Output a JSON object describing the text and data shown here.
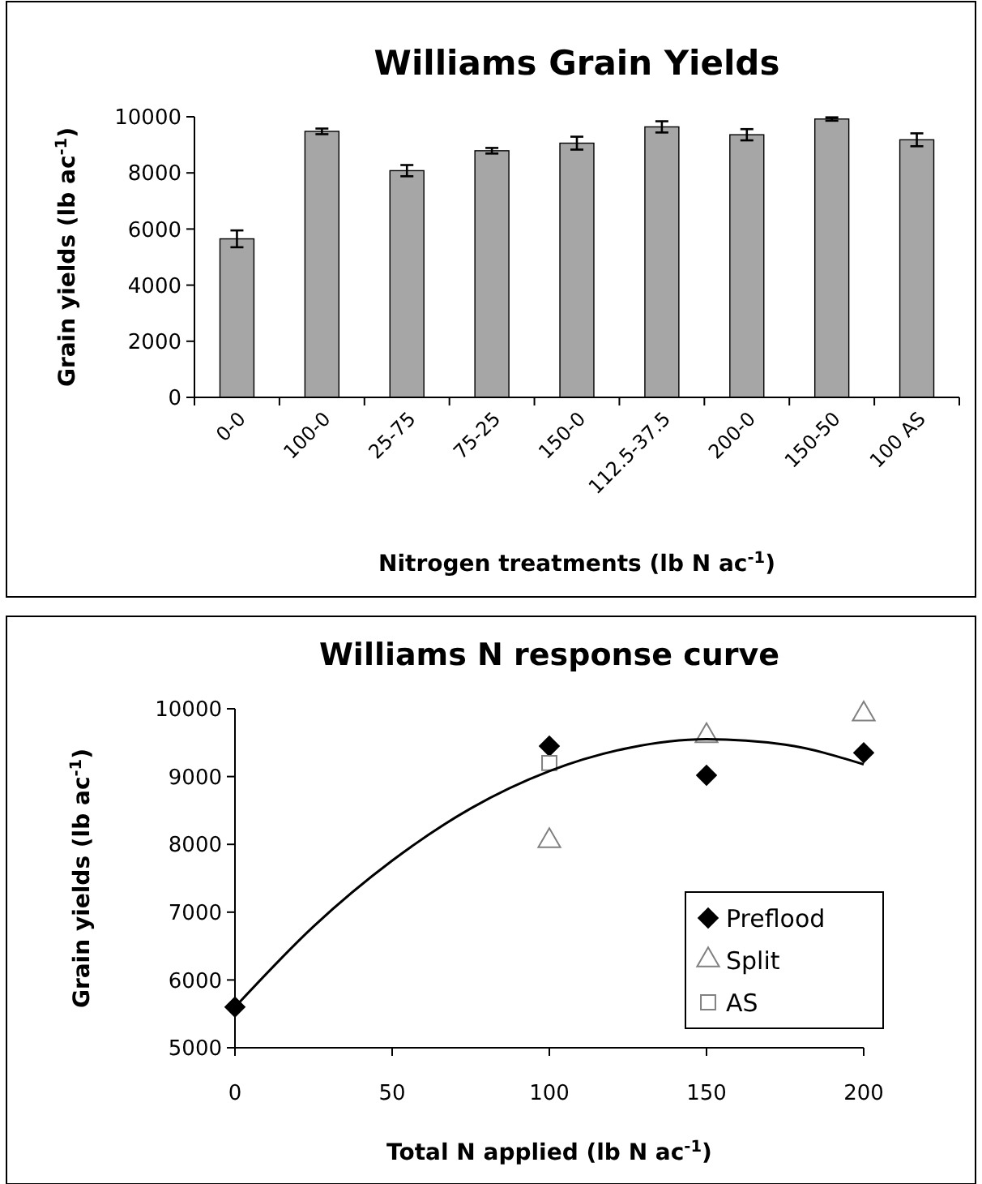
{
  "chart_data": [
    {
      "type": "bar",
      "title": "Williams Grain Yields",
      "xlabel": "Nitrogen treatments (lb N ac$^{-1}$)",
      "ylabel": "Grain yields (lb ac$^{-1}$)",
      "categories": [
        "0-0",
        "100-0",
        "25-75",
        "75-25",
        "150-0",
        "112.5-37.5",
        "200-0",
        "150-50",
        "100 AS"
      ],
      "values": [
        5650,
        9480,
        8080,
        8790,
        9060,
        9640,
        9360,
        9920,
        9180
      ],
      "errors": [
        300,
        100,
        200,
        100,
        230,
        200,
        200,
        60,
        230
      ],
      "color": "#a6a6a6",
      "ylim": [
        0,
        10000
      ],
      "yticks": [
        0,
        2000,
        4000,
        6000,
        8000,
        10000
      ],
      "grid": false
    },
    {
      "type": "scatter",
      "title": "Williams N response curve",
      "xlabel": "Total N applied (lb N ac$^{-1}$)",
      "ylabel": "Grain yields (lb ac$^{-1}$)",
      "series": [
        {
          "name": "Preflood",
          "color": "#000000",
          "marker": "diamond",
          "x": [
            0,
            100,
            150,
            200
          ],
          "values": [
            5600,
            9450,
            9020,
            9350
          ]
        },
        {
          "name": "Split",
          "color": "#808080",
          "marker": "triangle",
          "x": [
            100,
            150,
            200
          ],
          "values": [
            8050,
            9600,
            9920
          ]
        },
        {
          "name": "AS",
          "color": "#808080",
          "marker": "square",
          "x": [
            100
          ],
          "values": [
            9200
          ]
        },
        {
          "type": "line",
          "color": "#000000",
          "x": [
            0,
            25,
            50,
            75,
            100,
            125,
            150,
            175,
            200
          ],
          "values": [
            5600,
            6790,
            7760,
            8530,
            9080,
            9420,
            9550,
            9470,
            9180
          ]
        }
      ],
      "xlim": [
        0,
        200
      ],
      "xticks": [
        0,
        50,
        100,
        150,
        200
      ],
      "ylim": [
        5000,
        10000
      ],
      "yticks": [
        5000,
        6000,
        7000,
        8000,
        9000,
        10000
      ],
      "grid": false,
      "legend": "right"
    }
  ]
}
